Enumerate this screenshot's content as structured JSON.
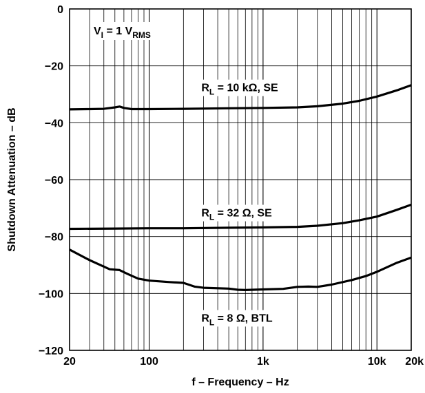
{
  "chart_data": {
    "type": "line",
    "xlabel": "f – Frequency – Hz",
    "ylabel": "Shutdown Attenuation – dB",
    "xscale": "log",
    "xlim": [
      20,
      20000
    ],
    "ylim": [
      -120,
      0
    ],
    "grid": true,
    "x_ticks": [
      {
        "value": 20,
        "label": "20"
      },
      {
        "value": 100,
        "label": "100"
      },
      {
        "value": 1000,
        "label": "1k"
      },
      {
        "value": 10000,
        "label": "10k"
      },
      {
        "value": 20000,
        "label": "20k"
      }
    ],
    "y_ticks": [
      {
        "value": 0,
        "label": "0"
      },
      {
        "value": -20,
        "label": "−20"
      },
      {
        "value": -40,
        "label": "−40"
      },
      {
        "value": -60,
        "label": "−60"
      },
      {
        "value": -80,
        "label": "−80"
      },
      {
        "value": -100,
        "label": "−100"
      },
      {
        "value": -120,
        "label": "−120"
      }
    ],
    "annotation": {
      "main": "V",
      "sub1": "I",
      "mid": " = 1 V",
      "sub2": "RMS"
    },
    "series": [
      {
        "label_main": "R",
        "label_sub": "L",
        "label_rest": " = 10 kΩ, SE",
        "label_x": 200,
        "label_y": -27.5,
        "points": [
          [
            20,
            -35.3
          ],
          [
            30,
            -35.2
          ],
          [
            40,
            -35.1
          ],
          [
            50,
            -34.6
          ],
          [
            55,
            -34.3
          ],
          [
            60,
            -34.8
          ],
          [
            70,
            -35.2
          ],
          [
            100,
            -35.2
          ],
          [
            200,
            -35.1
          ],
          [
            500,
            -34.9
          ],
          [
            1000,
            -34.8
          ],
          [
            2000,
            -34.6
          ],
          [
            3000,
            -34.2
          ],
          [
            5000,
            -33.3
          ],
          [
            7000,
            -32.3
          ],
          [
            10000,
            -30.8
          ],
          [
            15000,
            -28.6
          ],
          [
            20000,
            -26.8
          ]
        ]
      },
      {
        "label_main": "R",
        "label_sub": "L",
        "label_rest": " = 32 Ω, SE",
        "label_x": 200,
        "label_y": -71.5,
        "points": [
          [
            20,
            -77.3
          ],
          [
            50,
            -77.2
          ],
          [
            100,
            -77.1
          ],
          [
            200,
            -77.1
          ],
          [
            500,
            -76.9
          ],
          [
            1000,
            -76.8
          ],
          [
            2000,
            -76.6
          ],
          [
            3000,
            -76.2
          ],
          [
            5000,
            -75.3
          ],
          [
            7000,
            -74.3
          ],
          [
            10000,
            -73.0
          ],
          [
            15000,
            -70.6
          ],
          [
            20000,
            -68.8
          ]
        ]
      },
      {
        "label_main": "R",
        "label_sub": "L",
        "label_rest": " = 8 Ω, BTL",
        "label_x": 200,
        "label_y": -108.5,
        "points": [
          [
            20,
            -84.6
          ],
          [
            30,
            -88.3
          ],
          [
            45,
            -91.5
          ],
          [
            55,
            -91.8
          ],
          [
            65,
            -93.2
          ],
          [
            80,
            -94.8
          ],
          [
            100,
            -95.5
          ],
          [
            150,
            -96.0
          ],
          [
            200,
            -96.3
          ],
          [
            250,
            -97.6
          ],
          [
            300,
            -98.0
          ],
          [
            500,
            -98.3
          ],
          [
            600,
            -98.7
          ],
          [
            700,
            -98.8
          ],
          [
            1000,
            -98.6
          ],
          [
            1500,
            -98.4
          ],
          [
            2000,
            -97.7
          ],
          [
            2500,
            -97.6
          ],
          [
            3000,
            -97.7
          ],
          [
            4000,
            -96.9
          ],
          [
            6000,
            -95.3
          ],
          [
            8000,
            -93.9
          ],
          [
            10000,
            -92.4
          ],
          [
            15000,
            -89.2
          ],
          [
            20000,
            -87.4
          ]
        ]
      }
    ]
  }
}
